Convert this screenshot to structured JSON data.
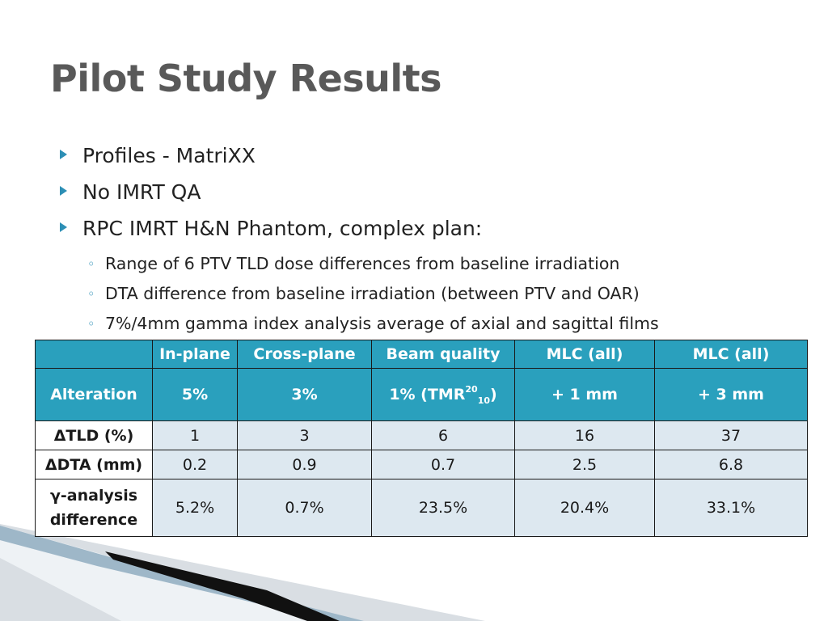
{
  "title": "Pilot Study Results",
  "bullets": [
    {
      "text": "Profiles - MatriXX"
    },
    {
      "text": "No IMRT QA"
    },
    {
      "text": "RPC IMRT H&N Phantom, complex plan:"
    }
  ],
  "sub_bullets": [
    {
      "text": "Range of 6 PTV TLD dose differences from baseline irradiation"
    },
    {
      "text": "DTA difference from baseline irradiation (between PTV and OAR)"
    },
    {
      "text": "7%/4mm gamma index analysis average of axial and sagittal films"
    }
  ],
  "table": {
    "header_row1": [
      "",
      "In-plane",
      "Cross-plane",
      "Beam quality",
      "MLC (all)",
      "MLC (all)"
    ],
    "header_row2": {
      "label": "Alteration",
      "cells": [
        "5%",
        "3%",
        "",
        "+ 1 mm",
        "+ 3 mm"
      ],
      "beam_quality": {
        "prefix": "1% (TMR",
        "sup": "20",
        "sub": "10",
        "suffix": ")"
      }
    },
    "rows": [
      {
        "label": "ΔTLD (%)",
        "values": [
          "1",
          "3",
          "6",
          "16",
          "37"
        ]
      },
      {
        "label": "ΔDTA (mm)",
        "values": [
          "0.2",
          "0.9",
          "0.7",
          "2.5",
          "6.8"
        ]
      },
      {
        "label_line1": "γ-analysis",
        "label_line2": "difference",
        "values": [
          "5.2%",
          "0.7%",
          "23.5%",
          "20.4%",
          "33.1%"
        ]
      }
    ]
  },
  "colors": {
    "header_bg": "#2aa0bd",
    "data_bg": "#dde8f0",
    "title": "#595959",
    "bullet": "#2d8fb5"
  }
}
